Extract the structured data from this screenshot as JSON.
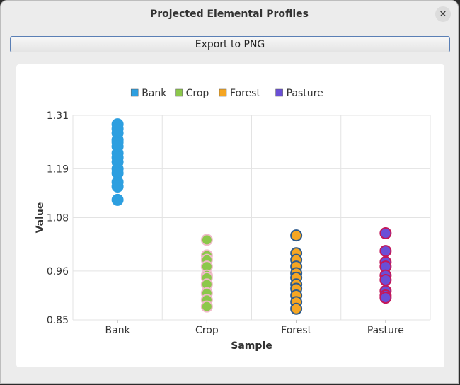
{
  "window": {
    "title": "Projected Elemental Profiles"
  },
  "toolbar": {
    "export_label": "Export to PNG"
  },
  "chart_data": {
    "type": "scatter",
    "categories": [
      "Bank",
      "Crop",
      "Forest",
      "Pasture"
    ],
    "xlabel": "Sample",
    "ylabel": "Value",
    "ylim": [
      0.85,
      1.31
    ],
    "yticks": [
      "1.31",
      "1.19",
      "1.08",
      "0.96",
      "0.85"
    ],
    "grid": true,
    "legend_position": "top",
    "series": [
      {
        "name": "Bank",
        "color": "#2d9fe0",
        "edge": "#2d9fe0",
        "values": [
          1.29,
          1.28,
          1.27,
          1.255,
          1.25,
          1.24,
          1.225,
          1.215,
          1.205,
          1.19,
          1.18,
          1.16,
          1.15,
          1.12
        ]
      },
      {
        "name": "Crop",
        "color": "#8cc84b",
        "edge": "#f0b9c9",
        "values": [
          1.03,
          0.995,
          0.985,
          0.97,
          0.95,
          0.945,
          0.93,
          0.91,
          0.895,
          0.88
        ]
      },
      {
        "name": "Forest",
        "color": "#f5a623",
        "edge": "#2d5a8c",
        "values": [
          1.04,
          1.0,
          0.985,
          0.97,
          0.955,
          0.945,
          0.93,
          0.92,
          0.905,
          0.89,
          0.875
        ]
      },
      {
        "name": "Pasture",
        "color": "#6a4fd6",
        "edge": "#c2185b",
        "values": [
          1.045,
          1.005,
          0.98,
          0.97,
          0.95,
          0.94,
          0.915,
          0.905,
          0.9
        ]
      }
    ]
  }
}
